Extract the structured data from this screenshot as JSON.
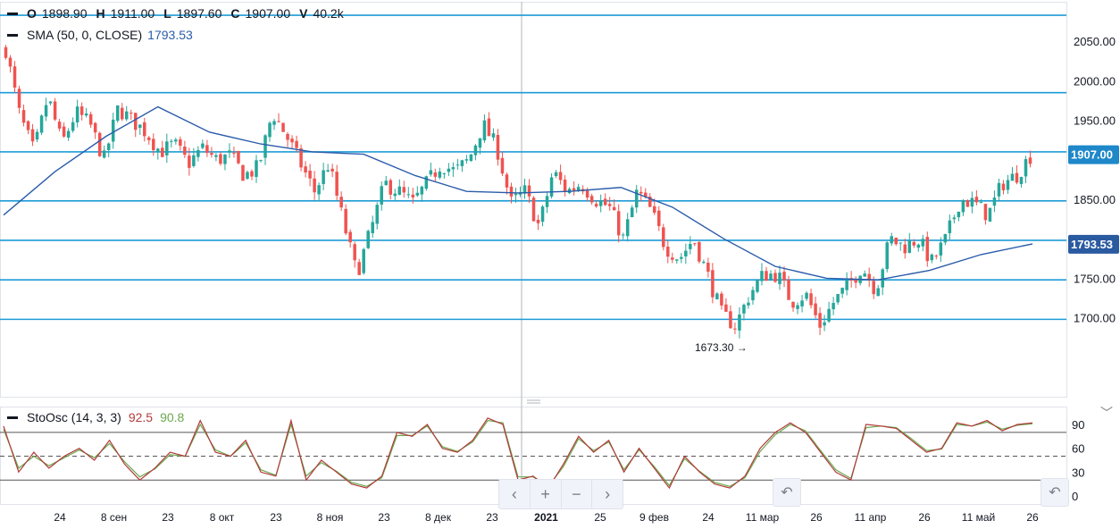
{
  "ohlc_legend": {
    "o_label": "O",
    "o_value": "1898.90",
    "h_label": "H",
    "h_value": "1911.00",
    "l_label": "L",
    "l_value": "1897.60",
    "c_label": "C",
    "c_value": "1907.00",
    "v_label": "V",
    "v_value": "40.2k"
  },
  "sma_legend": {
    "label": "SMA (50, 0, CLOSE)",
    "value": "1793.53"
  },
  "stoch_legend": {
    "label": "StoOsc (14, 3, 3)",
    "k_value": "92.5",
    "d_value": "90.8"
  },
  "min_label": "1673.30",
  "price_tags": {
    "last": "1907.00",
    "sma": "1793.53"
  },
  "colors": {
    "up": "#26a69a",
    "down": "#ef5350",
    "sma": "#2a5caa",
    "hline": "#1e9bd7",
    "k_line": "#b23b3b",
    "d_line": "#6aa84f"
  },
  "chart_data": {
    "type": "candlestick",
    "ylim": [
      1600,
      2100
    ],
    "price_ticks": [
      "2050.00",
      "2000.00",
      "1950.00",
      "1850.00",
      "1750.00",
      "1700.00"
    ],
    "horizontal_levels": [
      2083,
      1985,
      1910,
      1848,
      1798,
      1748,
      1698
    ],
    "x_labels": [
      "24",
      "8 сен",
      "23",
      "8 окт",
      "23",
      "8 ноя",
      "23",
      "8 дек",
      "23",
      "2021",
      "25",
      "9 фев",
      "24",
      "11 мар",
      "26",
      "11 апр",
      "26",
      "11 май",
      "26"
    ],
    "close_path": [
      2040,
      1955,
      1910,
      1980,
      1920,
      1960,
      1945,
      1900,
      1965,
      1950,
      1935,
      1910,
      1920,
      1895,
      1915,
      1900,
      1905,
      1880,
      1890,
      1960,
      1930,
      1895,
      1860,
      1895,
      1825,
      1755,
      1810,
      1870,
      1860,
      1845,
      1870,
      1895,
      1885,
      1900,
      1945,
      1915,
      1845,
      1860,
      1815,
      1885,
      1860,
      1870,
      1850,
      1840,
      1800,
      1860,
      1835,
      1790,
      1775,
      1800,
      1755,
      1705,
      1690,
      1730,
      1755,
      1755,
      1720,
      1730,
      1690,
      1720,
      1740,
      1765,
      1735,
      1800,
      1790,
      1800,
      1770,
      1800,
      1850,
      1845,
      1830,
      1870,
      1880,
      1905
    ],
    "sma": {
      "name": "SMA (50, 0, CLOSE)",
      "points": [
        [
          0,
          1830
        ],
        [
          0.05,
          1885
        ],
        [
          0.1,
          1930
        ],
        [
          0.15,
          1967
        ],
        [
          0.2,
          1935
        ],
        [
          0.25,
          1920
        ],
        [
          0.3,
          1910
        ],
        [
          0.35,
          1907
        ],
        [
          0.4,
          1880
        ],
        [
          0.45,
          1860
        ],
        [
          0.5,
          1858
        ],
        [
          0.55,
          1860
        ],
        [
          0.6,
          1865
        ],
        [
          0.65,
          1840
        ],
        [
          0.7,
          1800
        ],
        [
          0.75,
          1765
        ],
        [
          0.8,
          1750
        ],
        [
          0.85,
          1748
        ],
        [
          0.9,
          1760
        ],
        [
          0.95,
          1780
        ],
        [
          1.0,
          1793.5
        ]
      ]
    },
    "stochastic": {
      "levels": [
        80,
        50,
        20
      ],
      "ticks": [
        "90",
        "60",
        "30",
        "0"
      ],
      "k": [
        88,
        30,
        55,
        35,
        50,
        60,
        45,
        70,
        40,
        20,
        35,
        55,
        50,
        95,
        55,
        50,
        70,
        30,
        25,
        95,
        20,
        45,
        30,
        15,
        10,
        25,
        80,
        75,
        90,
        60,
        55,
        70,
        98,
        90,
        20,
        25,
        10,
        40,
        75,
        55,
        70,
        30,
        60,
        35,
        10,
        50,
        30,
        15,
        10,
        25,
        60,
        80,
        92,
        80,
        55,
        30,
        20,
        90,
        88,
        85,
        70,
        55,
        60,
        92,
        88,
        95,
        82,
        90,
        92
      ],
      "d": [
        84,
        35,
        50,
        38,
        48,
        58,
        48,
        66,
        43,
        24,
        34,
        52,
        50,
        90,
        58,
        50,
        67,
        33,
        26,
        90,
        25,
        42,
        31,
        17,
        12,
        23,
        76,
        76,
        88,
        62,
        56,
        68,
        95,
        92,
        24,
        24,
        12,
        37,
        72,
        57,
        68,
        33,
        58,
        37,
        13,
        47,
        31,
        17,
        12,
        23,
        56,
        77,
        90,
        82,
        57,
        33,
        22,
        86,
        88,
        86,
        72,
        57,
        59,
        90,
        88,
        93,
        84,
        89,
        91
      ]
    }
  }
}
